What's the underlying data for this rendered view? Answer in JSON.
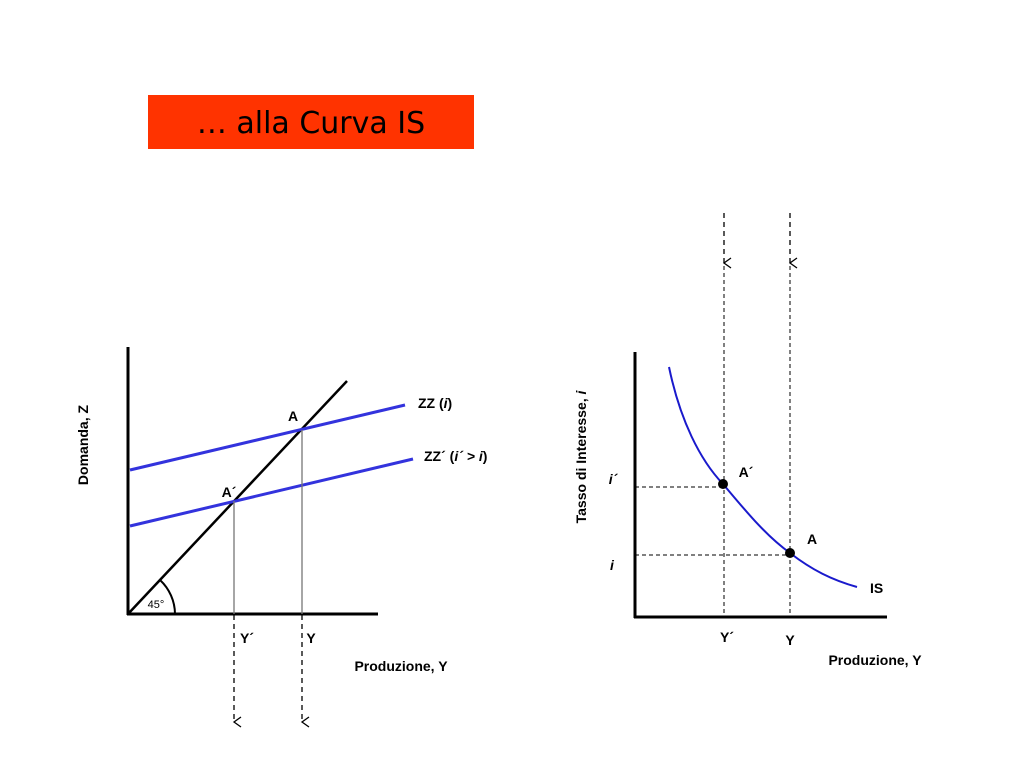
{
  "header": {
    "title": "… alla Curva IS"
  },
  "left_diagram": {
    "y_axis_label": "Domanda, Z",
    "x_axis_label": "Produzione, Y",
    "zz_label": [
      "ZZ (",
      "i",
      ")"
    ],
    "zz_prime_label": [
      "ZZ´ (",
      "i´ > i",
      ")"
    ],
    "point_a": "A",
    "point_a_prime": "A´",
    "angle": "45°",
    "y_prime": "Y´",
    "y": "Y"
  },
  "right_diagram": {
    "y_axis_label": [
      "Tasso di Interesse, ",
      "i"
    ],
    "x_axis_label": "Produzione, Y",
    "i_prime": "i´",
    "i": "i",
    "point_a_prime": "A´",
    "point_a": "A",
    "curve_label": "IS",
    "y_prime": "Y´",
    "y": "Y"
  }
}
